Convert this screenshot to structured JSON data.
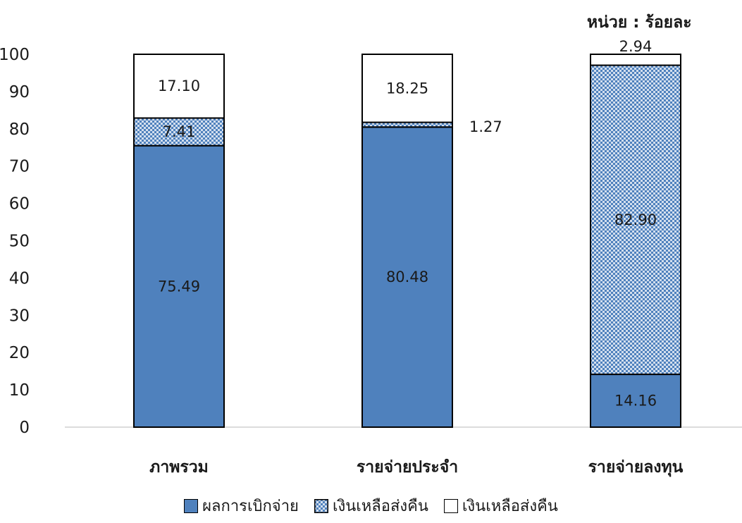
{
  "chart_data": {
    "type": "bar",
    "stacked": true,
    "unit_label": "หน่วย : ร้อยละ",
    "categories": [
      "ภาพรวม",
      "รายจ่ายประจำ",
      "รายจ่ายลงทุน"
    ],
    "series": [
      {
        "name": "ผลการเบิกจ่าย",
        "values": [
          75.49,
          80.48,
          14.16
        ],
        "labels": [
          "75.49",
          "80.48",
          "14.16"
        ],
        "fill": "solid",
        "color": "#4f81bd"
      },
      {
        "name": "เงินเหลือส่งคืน",
        "values": [
          7.41,
          1.27,
          82.9
        ],
        "labels": [
          "7.41",
          "1.27",
          "82.90"
        ],
        "fill": "pattern",
        "color": "#4f81bd"
      },
      {
        "name": "เงินเหลือส่งคืน",
        "values": [
          17.1,
          18.25,
          2.94
        ],
        "labels": [
          "17.10",
          "18.25",
          "2.94"
        ],
        "fill": "none",
        "color": "#ffffff"
      }
    ],
    "ylim": [
      0,
      100
    ],
    "yticks": [
      "0",
      "10",
      "20",
      "30",
      "40",
      "50",
      "60",
      "70",
      "80",
      "90",
      "100"
    ],
    "grid": false,
    "legend": "bottom"
  }
}
